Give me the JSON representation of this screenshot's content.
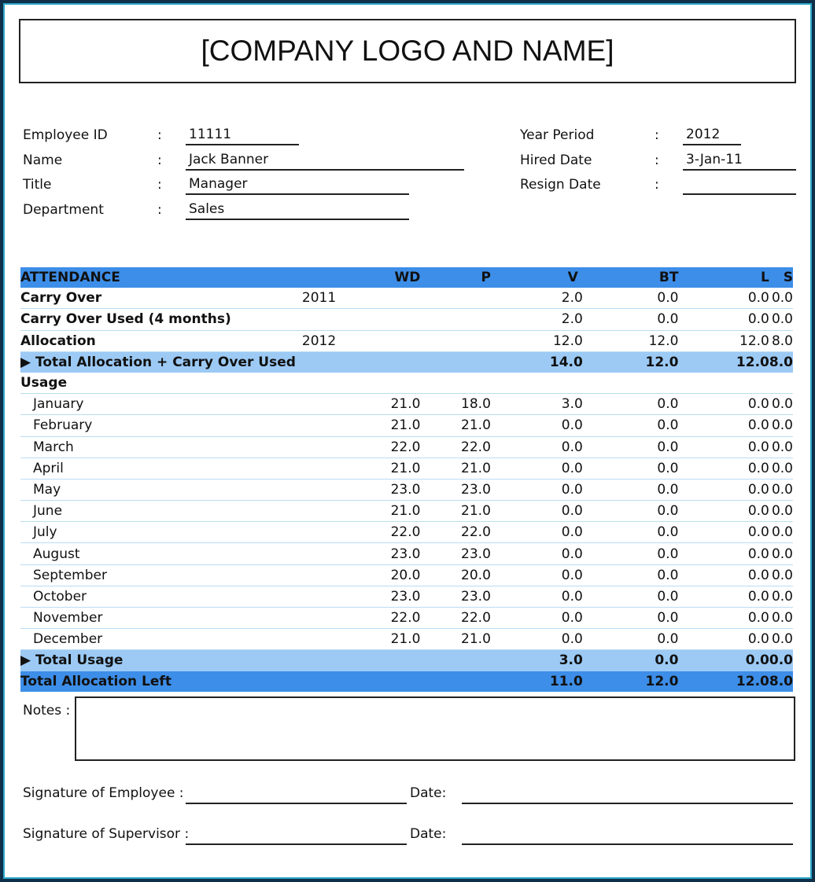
{
  "header": {
    "title": "[COMPANY LOGO AND NAME]"
  },
  "info": {
    "left": [
      {
        "label": "Employee ID",
        "value": "11111"
      },
      {
        "label": "Name",
        "value": "Jack Banner"
      },
      {
        "label": "Title",
        "value": "Manager"
      },
      {
        "label": "Department",
        "value": "Sales"
      }
    ],
    "right": [
      {
        "label": "Year Period",
        "value": "2012"
      },
      {
        "label": "Hired Date",
        "value": "3-Jan-11"
      },
      {
        "label": "Resign Date",
        "value": ""
      }
    ],
    "colon": ":"
  },
  "table": {
    "headers": [
      "ATTENDANCE",
      "WD",
      "P",
      "V",
      "BT",
      "L",
      "S"
    ],
    "top_rows": [
      {
        "label": "Carry Over",
        "year": "2011",
        "v": "2.0",
        "bt": "0.0",
        "l": "0.0",
        "s": "0.0"
      },
      {
        "label": "Carry Over Used (4 months)",
        "year": "",
        "v": "2.0",
        "bt": "0.0",
        "l": "0.0",
        "s": "0.0"
      },
      {
        "label": "Allocation",
        "year": "2012",
        "v": "12.0",
        "bt": "12.0",
        "l": "12.0",
        "s": "8.0"
      }
    ],
    "total_alloc": {
      "label": "▶ Total Allocation + Carry Over Used",
      "v": "14.0",
      "bt": "12.0",
      "l": "12.0",
      "s": "8.0"
    },
    "usage_label": "Usage",
    "months": [
      {
        "m": "January",
        "wd": "21.0",
        "p": "18.0",
        "v": "3.0",
        "bt": "0.0",
        "l": "0.0",
        "s": "0.0"
      },
      {
        "m": "February",
        "wd": "21.0",
        "p": "21.0",
        "v": "0.0",
        "bt": "0.0",
        "l": "0.0",
        "s": "0.0"
      },
      {
        "m": "March",
        "wd": "22.0",
        "p": "22.0",
        "v": "0.0",
        "bt": "0.0",
        "l": "0.0",
        "s": "0.0"
      },
      {
        "m": "April",
        "wd": "21.0",
        "p": "21.0",
        "v": "0.0",
        "bt": "0.0",
        "l": "0.0",
        "s": "0.0"
      },
      {
        "m": "May",
        "wd": "23.0",
        "p": "23.0",
        "v": "0.0",
        "bt": "0.0",
        "l": "0.0",
        "s": "0.0"
      },
      {
        "m": "June",
        "wd": "21.0",
        "p": "21.0",
        "v": "0.0",
        "bt": "0.0",
        "l": "0.0",
        "s": "0.0"
      },
      {
        "m": "July",
        "wd": "22.0",
        "p": "22.0",
        "v": "0.0",
        "bt": "0.0",
        "l": "0.0",
        "s": "0.0"
      },
      {
        "m": "August",
        "wd": "23.0",
        "p": "23.0",
        "v": "0.0",
        "bt": "0.0",
        "l": "0.0",
        "s": "0.0"
      },
      {
        "m": "September",
        "wd": "20.0",
        "p": "20.0",
        "v": "0.0",
        "bt": "0.0",
        "l": "0.0",
        "s": "0.0"
      },
      {
        "m": "October",
        "wd": "23.0",
        "p": "23.0",
        "v": "0.0",
        "bt": "0.0",
        "l": "0.0",
        "s": "0.0"
      },
      {
        "m": "November",
        "wd": "22.0",
        "p": "22.0",
        "v": "0.0",
        "bt": "0.0",
        "l": "0.0",
        "s": "0.0"
      },
      {
        "m": "December",
        "wd": "21.0",
        "p": "21.0",
        "v": "0.0",
        "bt": "0.0",
        "l": "0.0",
        "s": "0.0"
      }
    ],
    "total_usage": {
      "label": "▶ Total Usage",
      "v": "3.0",
      "bt": "0.0",
      "l": "0.0",
      "s": "0.0"
    },
    "total_left": {
      "label": "Total Allocation Left",
      "v": "11.0",
      "bt": "12.0",
      "l": "12.0",
      "s": "8.0"
    }
  },
  "footer": {
    "notes_label": "Notes :",
    "sig_employee": "Signature of Employee :",
    "sig_supervisor": "Signature of Supervisor :",
    "date_label": "Date:"
  },
  "colors": {
    "header_blue": "#3d8ee8",
    "subtotal_blue": "#9ccaf5",
    "frame": "#10304a"
  }
}
